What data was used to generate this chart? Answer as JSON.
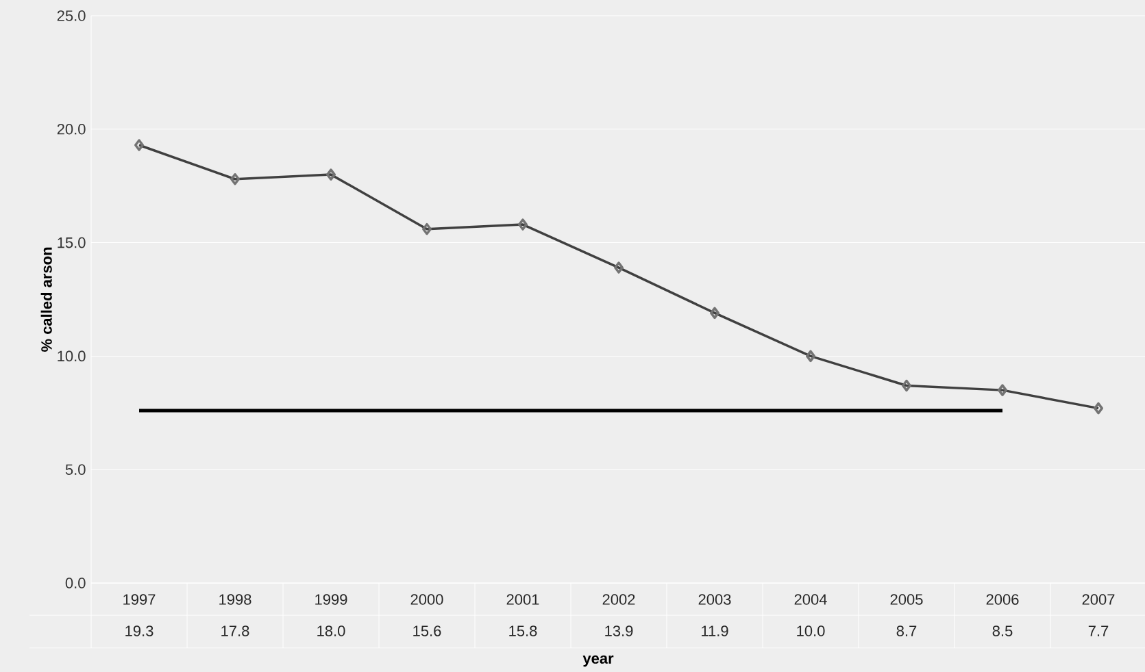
{
  "chart_data": {
    "type": "line",
    "xlabel": "year",
    "ylabel": "% called arson",
    "categories": [
      "1997",
      "1998",
      "1999",
      "2000",
      "2001",
      "2002",
      "2003",
      "2004",
      "2005",
      "2006",
      "2007"
    ],
    "series": [
      {
        "color": "#404040",
        "values": [
          19.3,
          17.8,
          18.0,
          15.6,
          15.8,
          13.9,
          11.9,
          10.0,
          8.7,
          8.5,
          7.7
        ],
        "value_labels": [
          "19.3",
          "17.8",
          "18.0",
          "15.6",
          "15.8",
          "13.9",
          "11.9",
          "10.0",
          "8.7",
          "8.5",
          "7.7"
        ]
      }
    ],
    "ylim": [
      0,
      25
    ],
    "yticks": [
      {
        "value": 0,
        "label": "0.0"
      },
      {
        "value": 5,
        "label": "5.0"
      },
      {
        "value": 10,
        "label": "10.0"
      },
      {
        "value": 15,
        "label": "15.0"
      },
      {
        "value": 20,
        "label": "20.0"
      },
      {
        "value": 25,
        "label": "25.0"
      }
    ],
    "grid": "y",
    "marker": "diamond",
    "line_style": "solid",
    "ref_lines": [
      {
        "axis": "y",
        "value": 7.6,
        "color": "#000000"
      }
    ]
  }
}
